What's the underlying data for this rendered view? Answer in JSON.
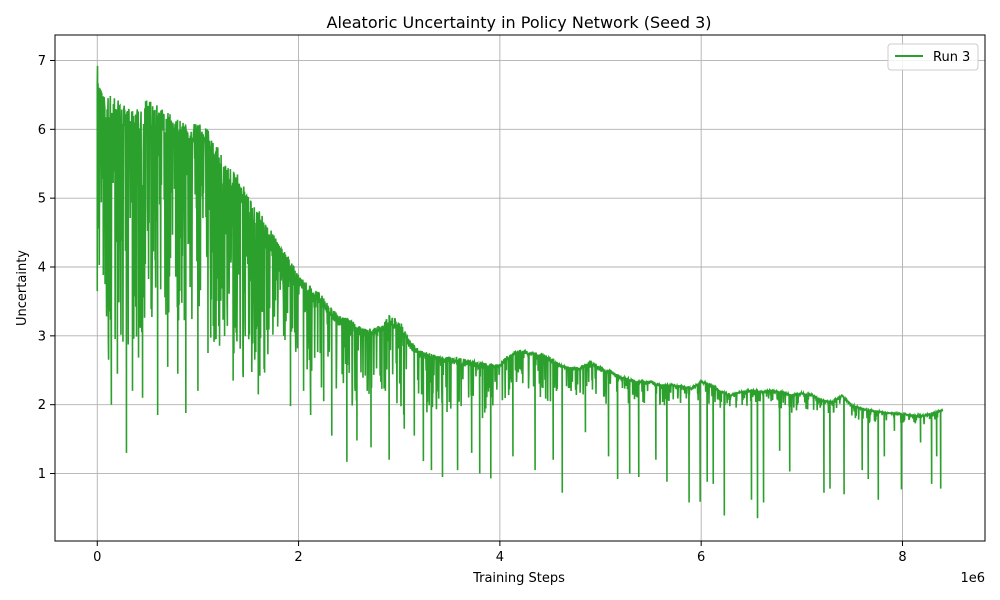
{
  "chart_data": {
    "type": "line",
    "title": "Aleatoric Uncertainty in Policy Network (Seed 3)",
    "xlabel": "Training Steps",
    "ylabel": "Uncertainty",
    "x_offset_label": "1e6",
    "xlim": [
      -420000,
      8820000
    ],
    "ylim": [
      0.02,
      7.37
    ],
    "x_ticks": [
      0,
      2000000,
      4000000,
      6000000,
      8000000
    ],
    "x_tick_labels": [
      "0",
      "2",
      "4",
      "6",
      "8"
    ],
    "y_ticks": [
      1,
      2,
      3,
      4,
      5,
      6,
      7
    ],
    "y_tick_labels": [
      "1",
      "2",
      "3",
      "4",
      "5",
      "6",
      "7"
    ],
    "grid": true,
    "legend_position": "top-right",
    "series": [
      {
        "name": "Run 3",
        "color": "#2ca02c",
        "x": [
          0,
          50000,
          100000,
          200000,
          300000,
          400000,
          500000,
          600000,
          700000,
          800000,
          900000,
          1000000,
          1100000,
          1200000,
          1300000,
          1400000,
          1500000,
          1600000,
          1700000,
          1800000,
          1900000,
          2000000,
          2100000,
          2200000,
          2300000,
          2400000,
          2500000,
          2600000,
          2700000,
          2800000,
          2900000,
          3000000,
          3100000,
          3200000,
          3300000,
          3400000,
          3500000,
          3600000,
          3700000,
          3800000,
          3900000,
          4000000,
          4100000,
          4200000,
          4300000,
          4400000,
          4500000,
          4600000,
          4700000,
          4800000,
          4900000,
          5000000,
          5100000,
          5200000,
          5300000,
          5400000,
          5500000,
          5600000,
          5700000,
          5800000,
          5900000,
          6000000,
          6100000,
          6200000,
          6300000,
          6400000,
          6500000,
          6600000,
          6700000,
          6800000,
          6900000,
          7000000,
          7100000,
          7200000,
          7300000,
          7400000,
          7500000,
          7600000,
          7700000,
          7800000,
          7900000,
          8000000,
          8100000,
          8200000,
          8300000,
          8400000
        ],
        "upper": [
          7.03,
          6.55,
          6.5,
          6.45,
          6.3,
          6.3,
          6.45,
          6.35,
          6.25,
          6.15,
          6.05,
          6.1,
          6.0,
          5.75,
          5.45,
          5.35,
          5.05,
          4.85,
          4.6,
          4.35,
          4.15,
          3.9,
          3.75,
          3.65,
          3.45,
          3.3,
          3.25,
          3.15,
          3.1,
          3.15,
          3.3,
          3.25,
          2.95,
          2.8,
          2.75,
          2.7,
          2.7,
          2.68,
          2.65,
          2.62,
          2.6,
          2.6,
          2.75,
          2.8,
          2.78,
          2.75,
          2.7,
          2.58,
          2.55,
          2.55,
          2.65,
          2.55,
          2.5,
          2.42,
          2.38,
          2.35,
          2.35,
          2.3,
          2.3,
          2.28,
          2.25,
          2.35,
          2.3,
          2.2,
          2.15,
          2.2,
          2.22,
          2.2,
          2.22,
          2.2,
          2.15,
          2.18,
          2.15,
          2.08,
          2.05,
          2.15,
          2.0,
          1.95,
          1.92,
          1.9,
          1.88,
          1.88,
          1.85,
          1.85,
          1.88,
          1.93
        ],
        "lower": [
          3.65,
          4.2,
          1.85,
          3.1,
          2.6,
          2.55,
          3.3,
          3.15,
          3.2,
          3.2,
          3.15,
          3.3,
          3.0,
          2.75,
          2.7,
          2.45,
          2.45,
          2.4,
          2.5,
          2.9,
          2.65,
          2.45,
          2.3,
          2.2,
          2.05,
          1.95,
          1.95,
          1.95,
          2.0,
          2.0,
          1.95,
          1.85,
          1.85,
          1.85,
          1.9,
          1.85,
          1.85,
          1.85,
          1.8,
          1.75,
          1.95,
          2.0,
          2.15,
          2.25,
          2.2,
          2.1,
          2.0,
          2.3,
          2.2,
          2.1,
          2.1,
          2.0,
          2.0,
          2.0,
          2.0,
          1.95,
          1.95,
          1.95,
          2.05,
          2.0,
          2.0,
          2.05,
          2.0,
          1.95,
          1.95,
          1.95,
          2.0,
          2.0,
          2.0,
          1.9,
          1.85,
          1.9,
          1.9,
          1.85,
          1.85,
          1.85,
          1.8,
          1.75,
          1.75,
          1.75,
          1.75,
          1.7,
          1.7,
          1.7,
          1.75,
          1.85
        ],
        "dips": [
          [
            0,
            3.65
          ],
          [
            140000,
            2.0
          ],
          [
            200000,
            2.45
          ],
          [
            290000,
            1.3
          ],
          [
            350000,
            2.2
          ],
          [
            450000,
            2.1
          ],
          [
            600000,
            1.85
          ],
          [
            700000,
            2.55
          ],
          [
            800000,
            2.45
          ],
          [
            880000,
            1.88
          ],
          [
            1000000,
            2.2
          ],
          [
            1100000,
            2.75
          ],
          [
            1350000,
            2.35
          ],
          [
            1450000,
            2.4
          ],
          [
            1600000,
            2.15
          ],
          [
            1920000,
            1.98
          ],
          [
            2050000,
            2.2
          ],
          [
            2120000,
            1.85
          ],
          [
            2250000,
            2.05
          ],
          [
            2330000,
            1.55
          ],
          [
            2480000,
            1.17
          ],
          [
            2580000,
            1.48
          ],
          [
            2720000,
            1.38
          ],
          [
            2900000,
            1.2
          ],
          [
            3050000,
            1.65
          ],
          [
            3150000,
            1.55
          ],
          [
            3240000,
            1.18
          ],
          [
            3320000,
            1.05
          ],
          [
            3430000,
            0.95
          ],
          [
            3580000,
            1.05
          ],
          [
            3720000,
            1.3
          ],
          [
            3800000,
            1.0
          ],
          [
            3910000,
            0.93
          ],
          [
            4130000,
            1.25
          ],
          [
            4350000,
            1.05
          ],
          [
            4530000,
            1.2
          ],
          [
            4620000,
            0.72
          ],
          [
            4850000,
            1.6
          ],
          [
            5080000,
            1.25
          ],
          [
            5170000,
            0.92
          ],
          [
            5290000,
            1.0
          ],
          [
            5380000,
            0.95
          ],
          [
            5550000,
            1.2
          ],
          [
            5660000,
            0.88
          ],
          [
            5880000,
            0.58
          ],
          [
            5990000,
            0.59
          ],
          [
            6060000,
            0.88
          ],
          [
            6120000,
            0.85
          ],
          [
            6230000,
            0.39
          ],
          [
            6500000,
            0.62
          ],
          [
            6560000,
            0.35
          ],
          [
            6620000,
            0.58
          ],
          [
            6780000,
            1.33
          ],
          [
            6880000,
            1.03
          ],
          [
            7220000,
            0.72
          ],
          [
            7280000,
            0.78
          ],
          [
            7420000,
            0.7
          ],
          [
            7600000,
            1.05
          ],
          [
            7660000,
            0.92
          ],
          [
            7760000,
            0.62
          ],
          [
            7820000,
            1.25
          ],
          [
            7920000,
            1.62
          ],
          [
            7990000,
            0.77
          ],
          [
            8180000,
            1.45
          ],
          [
            8290000,
            0.85
          ],
          [
            8340000,
            1.25
          ],
          [
            8380000,
            0.78
          ]
        ]
      }
    ]
  }
}
